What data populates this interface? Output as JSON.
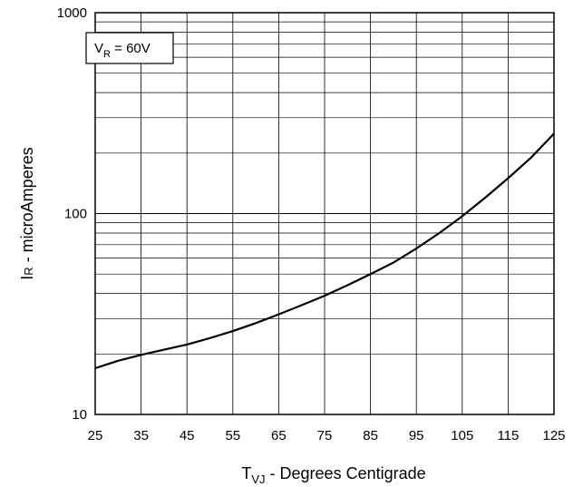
{
  "chart_data": {
    "type": "line",
    "title": "",
    "xlabel": {
      "main": "T",
      "sub": "VJ",
      "rest": " - Degrees Centigrade"
    },
    "ylabel": {
      "main": "I",
      "sub": "R",
      "rest": " - microAmperes"
    },
    "xlim": [
      25,
      125
    ],
    "ylim": [
      10,
      1000
    ],
    "yscale": "log",
    "grid": true,
    "x_ticks": [
      "25",
      "35",
      "45",
      "55",
      "65",
      "75",
      "85",
      "95",
      "105",
      "115",
      "125"
    ],
    "y_ticks": [
      "10",
      "100",
      "1000"
    ],
    "annotation": {
      "main": "V",
      "sub": "R",
      "rest": " = 60V"
    },
    "series": [
      {
        "x": [
          25,
          30,
          35,
          40,
          45,
          50,
          55,
          60,
          65,
          70,
          75,
          80,
          85,
          90,
          95,
          100,
          105,
          110,
          115,
          120,
          125
        ],
        "y": [
          17,
          18.5,
          19.8,
          21,
          22.3,
          24,
          26,
          28.5,
          31.5,
          35,
          39,
          44,
          50,
          57,
          67,
          80,
          97,
          120,
          150,
          190,
          250
        ]
      }
    ]
  }
}
